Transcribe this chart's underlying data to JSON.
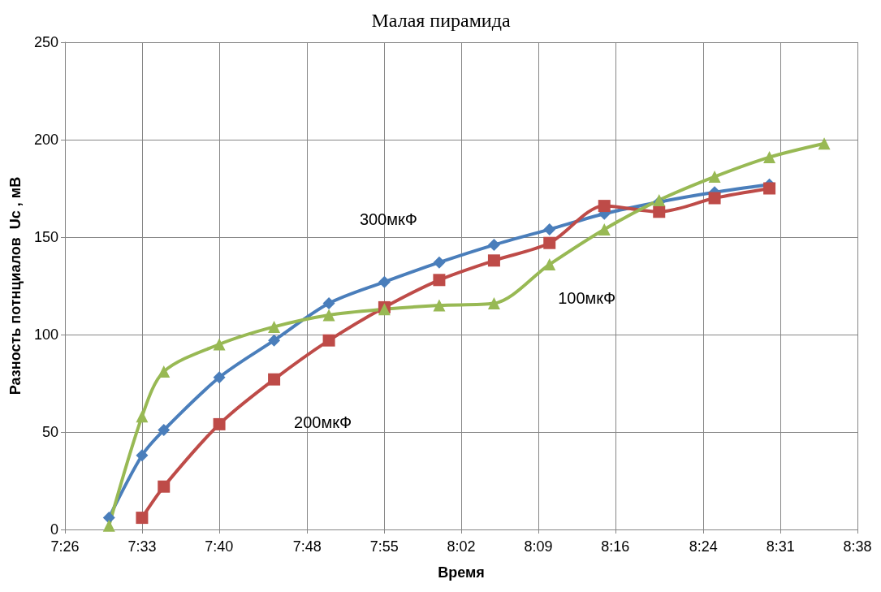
{
  "chart_data": {
    "type": "line",
    "title": "Малая пирамида",
    "xlabel": "Время",
    "ylabel": "Разность потнциалов  Uc , мВ",
    "xlim": [
      7.4333,
      8.6333
    ],
    "xticks": [
      {
        "value": 7.4333,
        "label": "7:26"
      },
      {
        "value": 7.55,
        "label": "7:33"
      },
      {
        "value": 7.6667,
        "label": "7:40"
      },
      {
        "value": 7.8,
        "label": "7:48"
      },
      {
        "value": 7.9167,
        "label": "7:55"
      },
      {
        "value": 8.0333,
        "label": "8:02"
      },
      {
        "value": 8.15,
        "label": "8:09"
      },
      {
        "value": 8.2667,
        "label": "8:16"
      },
      {
        "value": 8.4,
        "label": "8:24"
      },
      {
        "value": 8.5167,
        "label": "8:31"
      },
      {
        "value": 8.6333,
        "label": "8:38"
      }
    ],
    "ylim": [
      0,
      250
    ],
    "yticks": [
      0,
      50,
      100,
      150,
      200,
      250
    ],
    "grid": true,
    "legend": false,
    "series": [
      {
        "name": "300мкФ",
        "color": "#4a7ebb",
        "marker": "diamond",
        "x": [
          7.5,
          7.55,
          7.583,
          7.667,
          7.75,
          7.833,
          7.917,
          8.0,
          8.083,
          8.167,
          8.25,
          8.333,
          8.417,
          8.5
        ],
        "values": [
          6,
          38,
          51,
          78,
          97,
          116,
          127,
          137,
          146,
          154,
          162,
          168,
          173,
          177
        ]
      },
      {
        "name": "200мкФ",
        "color": "#be4b48",
        "marker": "square",
        "x": [
          7.55,
          7.583,
          7.667,
          7.75,
          7.833,
          7.917,
          8.0,
          8.083,
          8.167,
          8.25,
          8.333,
          8.417,
          8.5
        ],
        "values": [
          6,
          22,
          54,
          77,
          97,
          114,
          128,
          138,
          147,
          166,
          163,
          170,
          175
        ]
      },
      {
        "name": "100мкФ",
        "color": "#98b954",
        "marker": "triangle",
        "x": [
          7.5,
          7.55,
          7.583,
          7.667,
          7.75,
          7.833,
          7.917,
          8.0,
          8.083,
          8.167,
          8.25,
          8.333,
          8.417,
          8.5,
          8.583
        ],
        "values": [
          2,
          58,
          81,
          95,
          104,
          110,
          113,
          115,
          116,
          136,
          154,
          169,
          181,
          191,
          198
        ]
      }
    ]
  }
}
